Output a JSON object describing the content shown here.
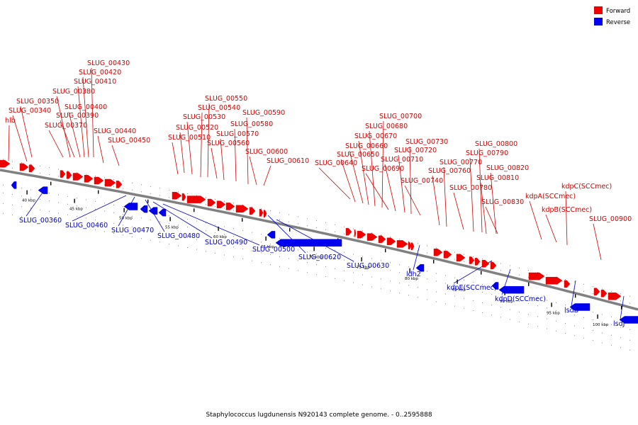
{
  "caption": "Staphylococcus lugdunensis N920143 complete genome. - 0..2595888",
  "legend": [
    {
      "label": "Forward",
      "color": "#ee0000"
    },
    {
      "label": "Reverse",
      "color": "#0000ee"
    }
  ],
  "colors": {
    "forward": "#ee0000",
    "reverse": "#0000ee",
    "forward_label": "#d00000",
    "reverse_label": "#0000c8",
    "backbone": "#808080"
  },
  "ticks": [
    "40 kbp",
    "45 kbp",
    "50 kbp",
    "55 kbp",
    "60 kbp",
    "65 kbp",
    "70 kbp",
    "75 kbp",
    "80 kbp",
    "85 kbp",
    "90 kbp",
    "95 kbp",
    "100 kbp"
  ],
  "forward_labels": [
    "hlb",
    "SLUG_00340",
    "SLUG_00350",
    "SLUG_00370",
    "SLUG_00380",
    "SLUG_00390",
    "SLUG_00400",
    "SLUG_00410",
    "SLUG_00420",
    "SLUG_00430",
    "SLUG_00440",
    "SLUG_00450",
    "SLUG_00510",
    "SLUG_00520",
    "SLUG_00530",
    "SLUG_00540",
    "SLUG_00550",
    "SLUG_00560",
    "SLUG_00570",
    "SLUG_00580",
    "SLUG_00590",
    "SLUG_00600",
    "SLUG_00610",
    "SLUG_00640",
    "SLUG_00650",
    "SLUG_00660",
    "SLUG_00670",
    "SLUG_00680",
    "SLUG_00690",
    "SLUG_00700",
    "SLUG_00710",
    "SLUG_00720",
    "SLUG_00730",
    "SLUG_00740",
    "SLUG_00760",
    "SLUG_00770",
    "SLUG_00780",
    "SLUG_00790",
    "SLUG_00800",
    "SLUG_00810",
    "SLUG_00820",
    "SLUG_00830",
    "kdpA(SCCmec)",
    "kdpB(SCCmec)",
    "kdpC(SCCmec)",
    "SLUG_00900"
  ],
  "reverse_labels": [
    "SLUG_00360",
    "SLUG_00460",
    "SLUG_00470",
    "SLUG_00480",
    "SLUG_00490",
    "SLUG_00500",
    "SLUG_00620",
    "SLUG_00630",
    "ldh2",
    "kdpE(SCCmec)",
    "kdpD(SCCmec)",
    "lsdB",
    "lsdJ"
  ]
}
